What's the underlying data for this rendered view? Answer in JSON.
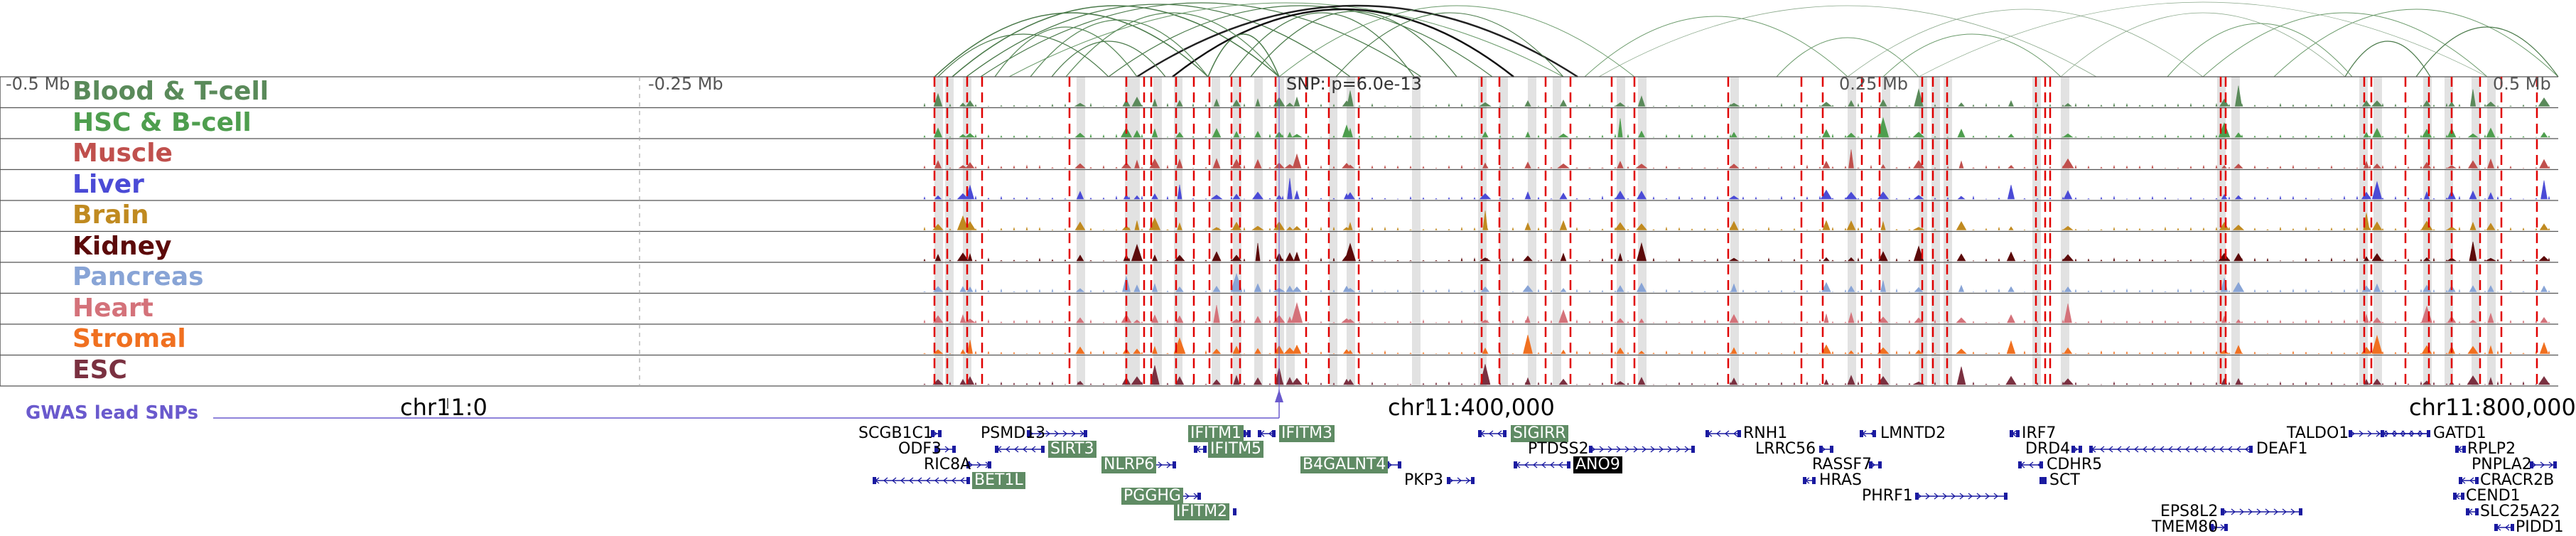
{
  "tracks": [
    {
      "label": "Blood & T-cell",
      "color": "#5a8a5a"
    },
    {
      "label": "HSC & B-cell",
      "color": "#4e9e4e"
    },
    {
      "label": "Muscle",
      "color": "#c0504d"
    },
    {
      "label": "Liver",
      "color": "#4b4bd6"
    },
    {
      "label": "Brain",
      "color": "#c08a20"
    },
    {
      "label": "Kidney",
      "color": "#5c0a0a"
    },
    {
      "label": "Pancreas",
      "color": "#88a4d6"
    },
    {
      "label": "Heart",
      "color": "#d4727a"
    },
    {
      "label": "Stromal",
      "color": "#f07020"
    },
    {
      "label": "ESC",
      "color": "#7a3040"
    }
  ],
  "coords": {
    "top_left": "-0.5 Mb",
    "top_mid": "-0.25 Mb",
    "top_right": "0.25 Mb",
    "top_far": "0.5 Mb"
  },
  "snp_label": "SNP: p=6.0e-13",
  "gwas_label": "GWAS lead SNPs",
  "chrom_labels": {
    "left": "chr11:0",
    "mid": "chr11:400,000",
    "right": "chr11:800,000"
  },
  "genes": [
    {
      "name": "SCGB1C1"
    },
    {
      "name": "ODF3"
    },
    {
      "name": "RIC8A"
    },
    {
      "name": "BET1L"
    },
    {
      "name": "PSMD13"
    },
    {
      "name": "SIRT3"
    },
    {
      "name": "NLRP6"
    },
    {
      "name": "PGGHG"
    },
    {
      "name": "IFITM1"
    },
    {
      "name": "IFITM3"
    },
    {
      "name": "IFITM5"
    },
    {
      "name": "IFITM2"
    },
    {
      "name": "B4GALNT4"
    },
    {
      "name": "PKP3"
    },
    {
      "name": "SIGIRR"
    },
    {
      "name": "PTDSS2"
    },
    {
      "name": "ANO9"
    },
    {
      "name": "RNH1"
    },
    {
      "name": "LRRC56"
    },
    {
      "name": "RASSF7"
    },
    {
      "name": "HRAS"
    },
    {
      "name": "LMNTD2"
    },
    {
      "name": "PHRF1"
    },
    {
      "name": "IRF7"
    },
    {
      "name": "DRD4"
    },
    {
      "name": "CDHR5"
    },
    {
      "name": "SCT"
    },
    {
      "name": "DEAF1"
    },
    {
      "name": "EPS8L2"
    },
    {
      "name": "TMEM80"
    },
    {
      "name": "TALDO1"
    },
    {
      "name": "GATD1"
    },
    {
      "name": "RPLP2"
    },
    {
      "name": "PNPLA2"
    },
    {
      "name": "CRACR2B"
    },
    {
      "name": "CEND1"
    },
    {
      "name": "SLC25A22"
    },
    {
      "name": "PIDD1"
    }
  ]
}
